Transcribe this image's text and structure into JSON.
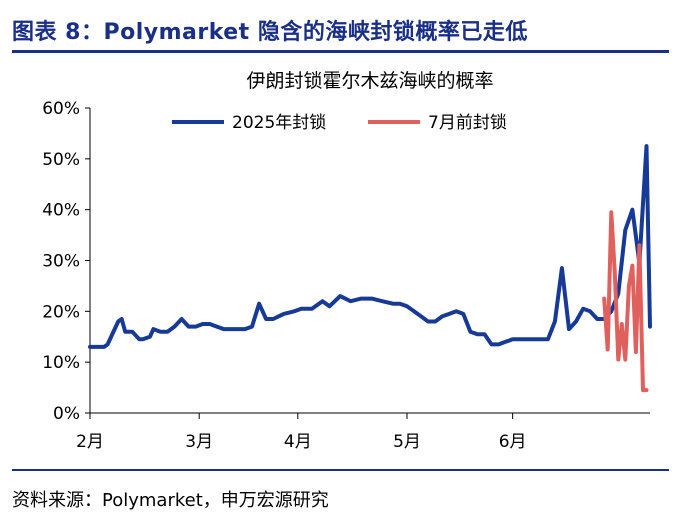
{
  "figure": {
    "title": "图表 8：Polymarket 隐含的海峡封锁概率已走低",
    "source": "资料来源：Polymarket，申万宏源研究"
  },
  "colors": {
    "title": "#1a2f86",
    "series_2025": "#163a95",
    "series_july": "#e0605e",
    "axis": "#000000"
  },
  "chart_data": {
    "type": "line",
    "title": "伊朗封锁霍尔木兹海峡的概率",
    "xlabel": "",
    "ylabel": "",
    "ylim": [
      0,
      60
    ],
    "yticks": [
      0,
      10,
      20,
      30,
      40,
      50,
      60
    ],
    "ytick_labels": [
      "0%",
      "10%",
      "20%",
      "30%",
      "40%",
      "50%",
      "60%"
    ],
    "xticks": [
      0,
      31,
      59,
      90,
      120
    ],
    "xtick_labels": [
      "2月",
      "3月",
      "4月",
      "5月",
      "6月"
    ],
    "xlim": [
      0,
      159
    ],
    "legend_position": "top",
    "grid": false,
    "series": [
      {
        "name": "2025年封锁",
        "x": [
          0,
          4,
          5,
          8,
          9,
          10,
          12,
          14,
          15,
          17,
          18,
          20,
          22,
          24,
          26,
          28,
          30,
          32,
          34,
          36,
          38,
          40,
          42,
          44,
          46,
          48,
          50,
          52,
          55,
          58,
          60,
          63,
          66,
          68,
          71,
          74,
          77,
          80,
          83,
          86,
          88,
          90,
          92,
          94,
          96,
          98,
          100,
          102,
          104,
          106,
          108,
          110,
          112,
          114,
          116,
          118,
          120,
          122,
          124,
          126,
          128,
          130,
          132,
          134,
          136,
          138,
          140,
          142,
          144,
          146,
          148,
          150,
          152,
          154,
          156,
          158,
          159
        ],
        "y": [
          13,
          13,
          13.5,
          18,
          18.5,
          16,
          16,
          14.5,
          14.5,
          15,
          16.5,
          16,
          16,
          17,
          18.5,
          17,
          17,
          17.5,
          17.5,
          17,
          16.5,
          16.5,
          16.5,
          16.5,
          17,
          21.5,
          18.5,
          18.5,
          19.5,
          20,
          20.5,
          20.5,
          22,
          21,
          23,
          22,
          22.5,
          22.5,
          22,
          21.5,
          21.5,
          21,
          20,
          19,
          18,
          18,
          19,
          19.5,
          20,
          19.5,
          16,
          15.5,
          15.5,
          13.5,
          13.5,
          14,
          14.5,
          14.5,
          14.5,
          14.5,
          14.5,
          14.5,
          18,
          28.5,
          16.5,
          18,
          20.5,
          20,
          18.5,
          18.5,
          20,
          23.5,
          36,
          40,
          29.5,
          52.5,
          17
        ]
      },
      {
        "name": "7月前封锁",
        "x": [
          146,
          147,
          148,
          149,
          150,
          151,
          152,
          153,
          154,
          155,
          156,
          157,
          158
        ],
        "y": [
          22.5,
          12.5,
          39.5,
          27.5,
          10.5,
          17.5,
          10.5,
          25,
          29,
          12,
          33,
          4.5,
          4.5
        ]
      }
    ]
  }
}
